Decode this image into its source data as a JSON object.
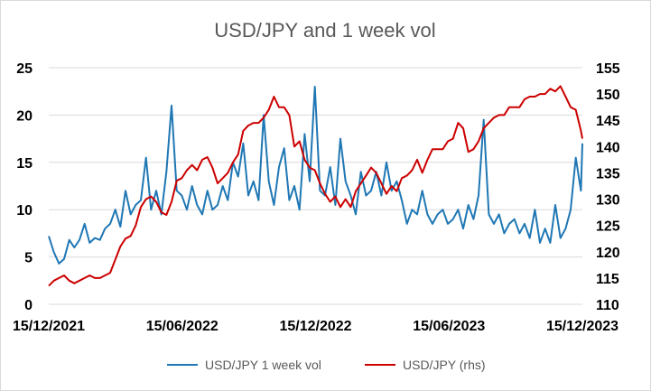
{
  "chart_data": {
    "type": "line",
    "title": "USD/JPY and 1 week vol",
    "x_tick_labels": [
      "15/12/2021",
      "15/06/2022",
      "15/12/2022",
      "15/06/2023",
      "15/12/2023"
    ],
    "x_range": [
      "2021-12-15",
      "2023-12-15"
    ],
    "ylim_left": [
      0,
      25
    ],
    "ylim_right": [
      110,
      155
    ],
    "y_ticks_left": [
      "0",
      "5",
      "10",
      "15",
      "20",
      "25"
    ],
    "y_ticks_right": [
      "110",
      "115",
      "120",
      "125",
      "130",
      "135",
      "140",
      "145",
      "150",
      "155"
    ],
    "grid": "horizontal",
    "legend_position": "bottom",
    "series": [
      {
        "name": "USD/JPY 1 week vol",
        "axis": "left",
        "color": "#1f77b4",
        "x": [
          "2021-12-15",
          "2021-12-22",
          "2021-12-29",
          "2022-01-05",
          "2022-01-12",
          "2022-01-19",
          "2022-01-26",
          "2022-02-02",
          "2022-02-09",
          "2022-02-16",
          "2022-02-23",
          "2022-03-02",
          "2022-03-09",
          "2022-03-16",
          "2022-03-23",
          "2022-03-30",
          "2022-04-06",
          "2022-04-13",
          "2022-04-20",
          "2022-04-27",
          "2022-05-04",
          "2022-05-11",
          "2022-05-18",
          "2022-05-25",
          "2022-06-01",
          "2022-06-08",
          "2022-06-15",
          "2022-06-22",
          "2022-06-29",
          "2022-07-06",
          "2022-07-13",
          "2022-07-20",
          "2022-07-27",
          "2022-08-03",
          "2022-08-10",
          "2022-08-17",
          "2022-08-24",
          "2022-08-31",
          "2022-09-07",
          "2022-09-14",
          "2022-09-21",
          "2022-09-28",
          "2022-10-05",
          "2022-10-12",
          "2022-10-19",
          "2022-10-26",
          "2022-11-02",
          "2022-11-09",
          "2022-11-16",
          "2022-11-23",
          "2022-11-30",
          "2022-12-07",
          "2022-12-14",
          "2022-12-21",
          "2022-12-28",
          "2023-01-04",
          "2023-01-11",
          "2023-01-18",
          "2023-01-25",
          "2023-02-01",
          "2023-02-08",
          "2023-02-15",
          "2023-02-22",
          "2023-03-01",
          "2023-03-08",
          "2023-03-15",
          "2023-03-22",
          "2023-03-29",
          "2023-04-05",
          "2023-04-12",
          "2023-04-19",
          "2023-04-26",
          "2023-05-03",
          "2023-05-10",
          "2023-05-17",
          "2023-05-24",
          "2023-05-31",
          "2023-06-07",
          "2023-06-14",
          "2023-06-21",
          "2023-06-28",
          "2023-07-05",
          "2023-07-12",
          "2023-07-19",
          "2023-07-26",
          "2023-08-02",
          "2023-08-09",
          "2023-08-16",
          "2023-08-23",
          "2023-08-30",
          "2023-09-06",
          "2023-09-13",
          "2023-09-20",
          "2023-09-27",
          "2023-10-04",
          "2023-10-11",
          "2023-10-18",
          "2023-10-25",
          "2023-11-01",
          "2023-11-08",
          "2023-11-15",
          "2023-11-22",
          "2023-11-29",
          "2023-12-06",
          "2023-12-13",
          "2023-12-15"
        ],
        "values": [
          7.2,
          5.5,
          4.3,
          4.8,
          6.8,
          6.0,
          6.8,
          8.5,
          6.5,
          7.0,
          6.8,
          8.0,
          8.5,
          10.0,
          8.2,
          12.0,
          9.5,
          10.5,
          11.0,
          15.5,
          10.0,
          12.0,
          9.5,
          14.0,
          21.0,
          12.0,
          11.5,
          10.0,
          12.5,
          10.5,
          9.5,
          12.0,
          10.0,
          10.5,
          12.5,
          11.0,
          15.0,
          13.5,
          17.0,
          11.5,
          13.0,
          11.0,
          20.0,
          13.0,
          10.5,
          14.5,
          16.5,
          11.0,
          12.5,
          10.0,
          18.0,
          13.0,
          23.0,
          12.0,
          11.5,
          14.5,
          10.5,
          17.5,
          13.0,
          11.5,
          9.5,
          14.0,
          11.5,
          12.0,
          14.0,
          11.5,
          15.0,
          12.0,
          13.0,
          11.0,
          8.5,
          10.0,
          9.5,
          12.0,
          9.5,
          8.5,
          9.5,
          10.0,
          8.5,
          9.0,
          10.0,
          8.0,
          10.5,
          9.0,
          11.5,
          19.5,
          9.5,
          8.5,
          9.5,
          7.5,
          8.5,
          9.0,
          7.5,
          8.5,
          7.0,
          10.0,
          6.5,
          8.0,
          6.5,
          10.5,
          7.0,
          8.0,
          10.0,
          15.5,
          12.0,
          17.0
        ]
      },
      {
        "name": "USD/JPY (rhs)",
        "axis": "right",
        "color": "#cc0000",
        "x": [
          "2021-12-15",
          "2021-12-22",
          "2021-12-29",
          "2022-01-05",
          "2022-01-12",
          "2022-01-19",
          "2022-01-26",
          "2022-02-02",
          "2022-02-09",
          "2022-02-16",
          "2022-02-23",
          "2022-03-02",
          "2022-03-09",
          "2022-03-16",
          "2022-03-23",
          "2022-03-30",
          "2022-04-06",
          "2022-04-13",
          "2022-04-20",
          "2022-04-27",
          "2022-05-04",
          "2022-05-11",
          "2022-05-18",
          "2022-05-25",
          "2022-06-01",
          "2022-06-08",
          "2022-06-15",
          "2022-06-22",
          "2022-06-29",
          "2022-07-06",
          "2022-07-13",
          "2022-07-20",
          "2022-07-27",
          "2022-08-03",
          "2022-08-10",
          "2022-08-17",
          "2022-08-24",
          "2022-08-31",
          "2022-09-07",
          "2022-09-14",
          "2022-09-21",
          "2022-09-28",
          "2022-10-05",
          "2022-10-12",
          "2022-10-19",
          "2022-10-26",
          "2022-11-02",
          "2022-11-09",
          "2022-11-16",
          "2022-11-23",
          "2022-11-30",
          "2022-12-07",
          "2022-12-14",
          "2022-12-21",
          "2022-12-28",
          "2023-01-04",
          "2023-01-11",
          "2023-01-18",
          "2023-01-25",
          "2023-02-01",
          "2023-02-08",
          "2023-02-15",
          "2023-02-22",
          "2023-03-01",
          "2023-03-08",
          "2023-03-15",
          "2023-03-22",
          "2023-03-29",
          "2023-04-05",
          "2023-04-12",
          "2023-04-19",
          "2023-04-26",
          "2023-05-03",
          "2023-05-10",
          "2023-05-17",
          "2023-05-24",
          "2023-05-31",
          "2023-06-07",
          "2023-06-14",
          "2023-06-21",
          "2023-06-28",
          "2023-07-05",
          "2023-07-12",
          "2023-07-19",
          "2023-07-26",
          "2023-08-02",
          "2023-08-09",
          "2023-08-16",
          "2023-08-23",
          "2023-08-30",
          "2023-09-06",
          "2023-09-13",
          "2023-09-20",
          "2023-09-27",
          "2023-10-04",
          "2023-10-11",
          "2023-10-18",
          "2023-10-25",
          "2023-11-01",
          "2023-11-08",
          "2023-11-15",
          "2023-11-22",
          "2023-11-29",
          "2023-12-06",
          "2023-12-13",
          "2023-12-15"
        ],
        "values": [
          113.5,
          114.5,
          115.0,
          115.5,
          114.5,
          114.0,
          114.5,
          115.0,
          115.5,
          115.0,
          115.0,
          115.5,
          116.0,
          118.5,
          121.0,
          122.5,
          123.0,
          125.0,
          128.5,
          130.0,
          130.5,
          129.5,
          127.5,
          127.0,
          129.5,
          133.5,
          134.0,
          135.5,
          136.5,
          135.5,
          137.5,
          138.0,
          136.0,
          133.0,
          134.0,
          135.0,
          137.0,
          138.5,
          143.0,
          144.0,
          144.5,
          144.5,
          145.5,
          147.0,
          149.5,
          147.5,
          147.5,
          146.0,
          140.0,
          141.0,
          137.5,
          136.0,
          135.5,
          133.0,
          131.0,
          129.5,
          130.5,
          128.5,
          130.0,
          128.5,
          131.5,
          133.0,
          134.5,
          136.0,
          135.0,
          133.0,
          131.0,
          132.5,
          131.5,
          134.0,
          134.5,
          135.5,
          137.5,
          135.0,
          137.5,
          139.5,
          139.5,
          139.5,
          141.0,
          141.5,
          144.5,
          143.5,
          139.0,
          139.5,
          141.0,
          143.5,
          144.5,
          145.5,
          146.0,
          146.0,
          147.5,
          147.5,
          147.5,
          149.0,
          149.5,
          149.5,
          150.0,
          150.0,
          151.0,
          150.5,
          151.5,
          149.5,
          147.5,
          147.0,
          143.0,
          141.5
        ]
      }
    ]
  }
}
